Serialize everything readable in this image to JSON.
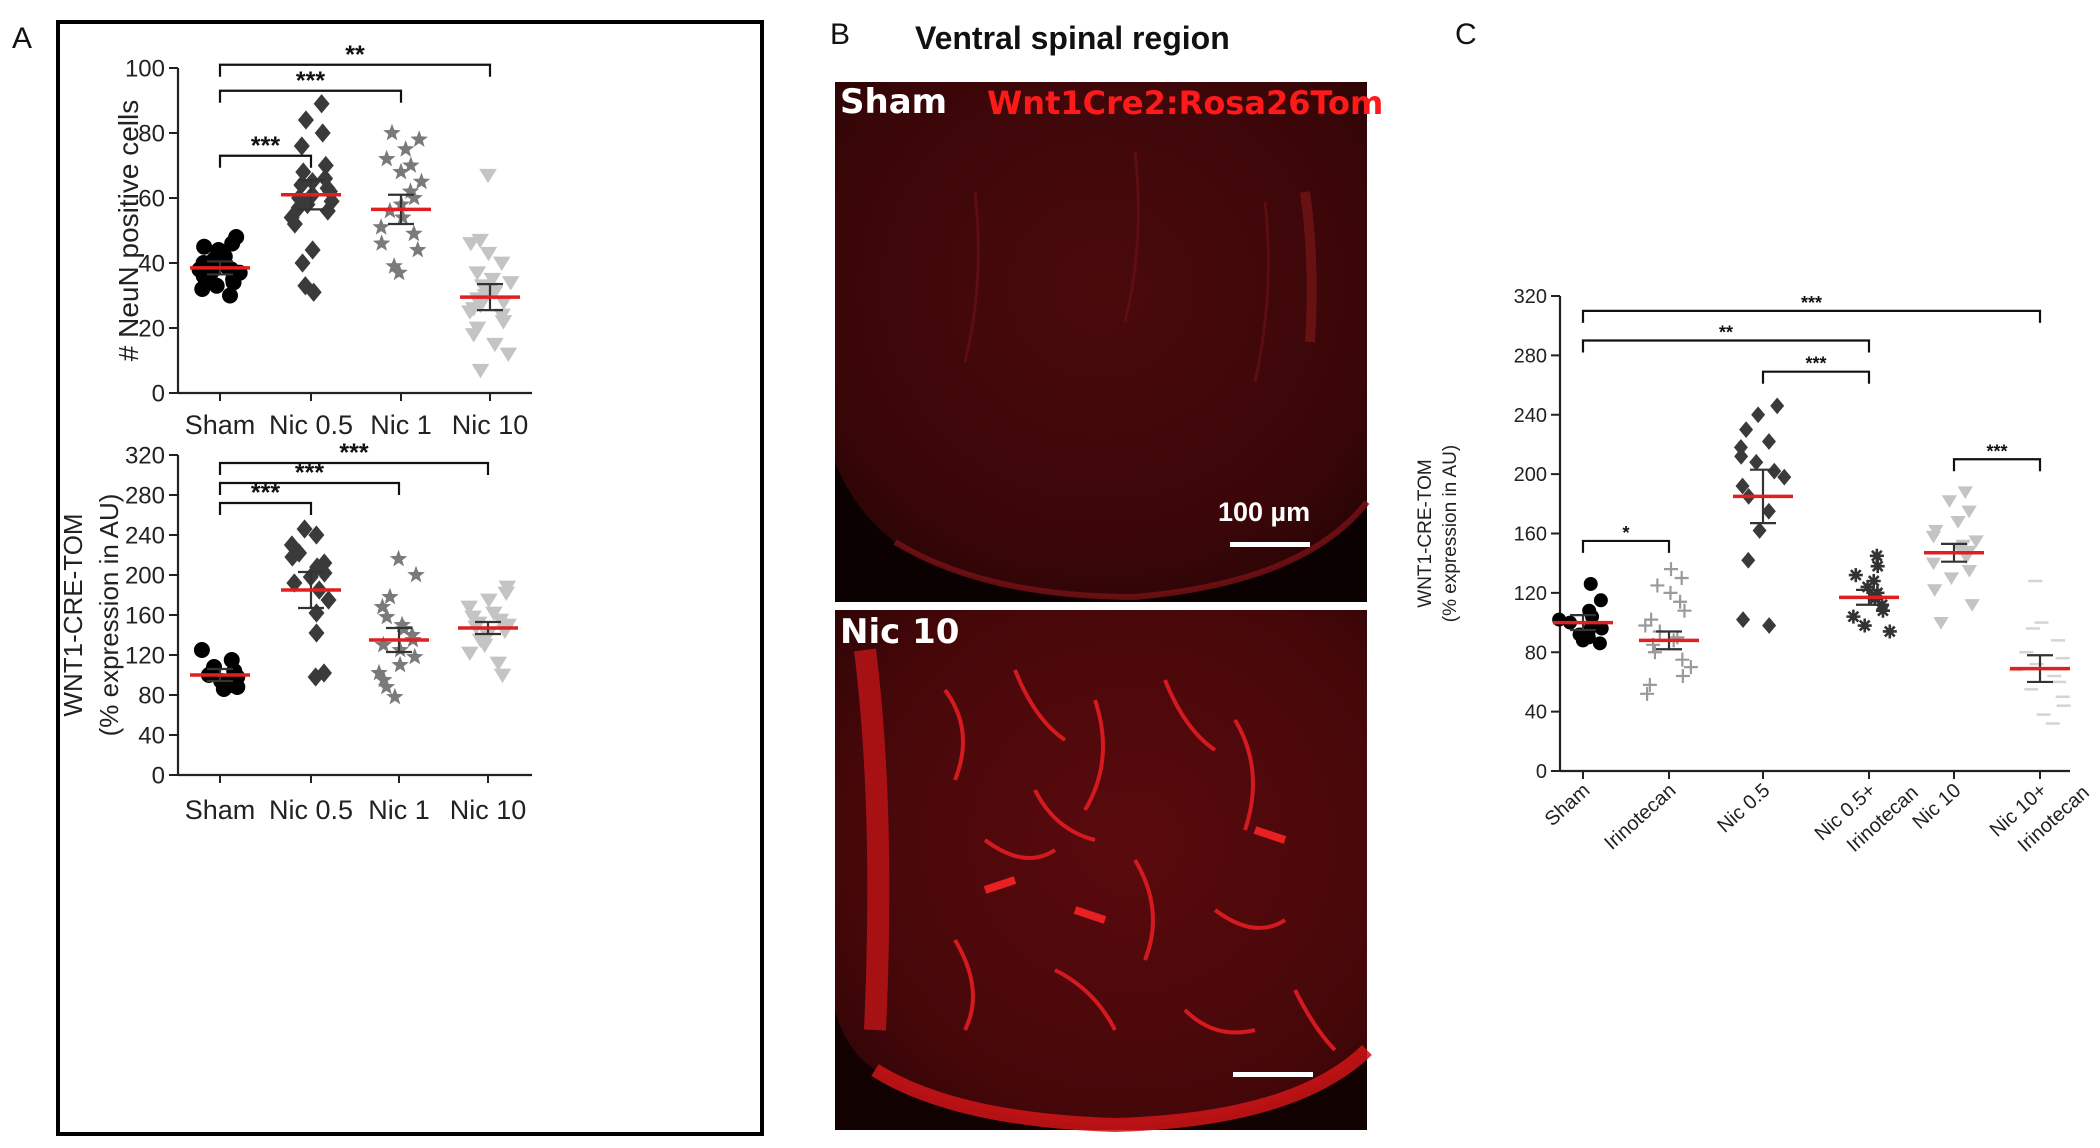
{
  "panels": {
    "a": {
      "letter": "A"
    },
    "b": {
      "letter": "B",
      "title": "Ventral spinal region",
      "top_label": "Sham",
      "bottom_label": "Nic 10",
      "genotype_label": "Wnt1Cre2:Rosa26Tom",
      "scale_text": "100 µm"
    },
    "c": {
      "letter": "C"
    }
  },
  "colors": {
    "mean_line": "#e02020",
    "sham": "#000000",
    "nic05": "#3a3a3a",
    "nic1": "#7a7a7a",
    "nic10": "#c4c4c4",
    "irinotecan": "#9a9a9a",
    "tissue": "#d01515"
  },
  "chart_data": [
    {
      "id": "A-top",
      "type": "scatter",
      "ylabel": "# NeuN positive cells",
      "xlabel": "",
      "ylim": [
        0,
        100
      ],
      "yticks": [
        0,
        20,
        40,
        60,
        80,
        100
      ],
      "categories": [
        "Sham",
        "Nic 0.5",
        "Nic 1",
        "Nic 10"
      ],
      "series": [
        {
          "name": "Sham",
          "marker": "circle",
          "color": "#000000",
          "mean": 38.5,
          "sem": 2,
          "values": [
            30,
            32,
            33,
            34,
            35,
            35,
            36,
            37,
            37,
            38,
            38,
            39,
            39,
            40,
            40,
            41,
            42,
            43,
            44,
            45,
            46,
            48
          ]
        },
        {
          "name": "Nic 0.5",
          "marker": "diamond",
          "color": "#3a3a3a",
          "mean": 61,
          "sem": 4.5,
          "values": [
            31,
            33,
            40,
            44,
            52,
            54,
            56,
            57,
            58,
            59,
            60,
            61,
            62,
            63,
            64,
            65,
            66,
            68,
            70,
            76,
            80,
            84,
            89
          ]
        },
        {
          "name": "Nic 1",
          "marker": "star",
          "color": "#7a7a7a",
          "mean": 56.5,
          "sem": 4.5,
          "values": [
            37,
            39,
            44,
            46,
            49,
            51,
            54,
            56,
            58,
            60,
            62,
            65,
            68,
            70,
            72,
            75,
            78,
            80
          ]
        },
        {
          "name": "Nic 10",
          "marker": "triangle-down",
          "color": "#c4c4c4",
          "mean": 29.5,
          "sem": 4,
          "values": [
            7,
            12,
            15,
            18,
            20,
            22,
            24,
            25,
            26,
            27,
            28,
            29,
            30,
            31,
            32,
            33,
            34,
            35,
            37,
            40,
            43,
            46,
            47,
            67
          ]
        }
      ],
      "significance": [
        {
          "from": "Sham",
          "to": "Nic 0.5",
          "label": "***",
          "y": 73
        },
        {
          "from": "Sham",
          "to": "Nic 1",
          "label": "***",
          "y": 93
        },
        {
          "from": "Sham",
          "to": "Nic 10",
          "label": "**",
          "y": 101
        }
      ]
    },
    {
      "id": "A-bottom",
      "type": "scatter",
      "ylabel": "WNT1-CRE-TOM",
      "ylabel2": "(% expression in AU)",
      "xlabel": "",
      "ylim": [
        0,
        320
      ],
      "yticks": [
        0,
        40,
        80,
        120,
        160,
        200,
        240,
        280,
        320
      ],
      "categories": [
        "Sham",
        "Nic 0.5",
        "Nic 1",
        "Nic 10"
      ],
      "series": [
        {
          "name": "Sham",
          "marker": "circle",
          "color": "#000000",
          "mean": 100,
          "sem": 6,
          "values": [
            86,
            88,
            90,
            92,
            94,
            96,
            98,
            100,
            102,
            104,
            108,
            115,
            125
          ]
        },
        {
          "name": "Nic 0.5",
          "marker": "diamond",
          "color": "#3a3a3a",
          "mean": 185,
          "sem": 18,
          "values": [
            98,
            102,
            142,
            162,
            175,
            185,
            192,
            198,
            202,
            208,
            212,
            218,
            222,
            230,
            240,
            246
          ]
        },
        {
          "name": "Nic 1",
          "marker": "star",
          "color": "#7a7a7a",
          "mean": 135,
          "sem": 12,
          "values": [
            78,
            88,
            95,
            102,
            110,
            118,
            125,
            130,
            135,
            140,
            146,
            150,
            158,
            168,
            178,
            200,
            216
          ]
        },
        {
          "name": "Nic 10",
          "marker": "triangle-down",
          "color": "#c4c4c4",
          "mean": 147,
          "sem": 6,
          "values": [
            100,
            112,
            122,
            130,
            135,
            140,
            144,
            148,
            150,
            152,
            155,
            158,
            162,
            168,
            175,
            182,
            188
          ]
        }
      ],
      "significance": [
        {
          "from": "Sham",
          "to": "Nic 0.5",
          "label": "***",
          "y": 272
        },
        {
          "from": "Sham",
          "to": "Nic 1",
          "label": "***",
          "y": 292
        },
        {
          "from": "Sham",
          "to": "Nic 10",
          "label": "***",
          "y": 312
        }
      ]
    },
    {
      "id": "C",
      "type": "scatter",
      "ylabel": "WNT1-CRE-TOM",
      "ylabel2": "(% expression in AU)",
      "xlabel": "",
      "ylim": [
        0,
        320
      ],
      "yticks": [
        0,
        40,
        80,
        120,
        160,
        200,
        240,
        280,
        320
      ],
      "categories": [
        "Sham",
        "Irinotecan",
        "Nic 0.5",
        "Nic 0.5+ Irinotecan",
        "Nic 10",
        "Nic 10+ Irinotecan"
      ],
      "series": [
        {
          "name": "Sham",
          "marker": "circle",
          "color": "#000000",
          "mean": 100,
          "sem": 5,
          "values": [
            86,
            88,
            90,
            92,
            94,
            96,
            98,
            100,
            102,
            104,
            108,
            115,
            126
          ]
        },
        {
          "name": "Irinotecan",
          "marker": "plus",
          "color": "#9a9a9a",
          "mean": 88,
          "sem": 6,
          "values": [
            52,
            58,
            64,
            70,
            75,
            80,
            85,
            88,
            90,
            94,
            98,
            102,
            108,
            114,
            120,
            125,
            130,
            136
          ]
        },
        {
          "name": "Nic 0.5",
          "marker": "diamond",
          "color": "#3a3a3a",
          "mean": 185,
          "sem": 18,
          "values": [
            98,
            102,
            142,
            162,
            175,
            185,
            192,
            198,
            202,
            208,
            212,
            218,
            222,
            230,
            240,
            246
          ]
        },
        {
          "name": "Nic 0.5+ Irinotecan",
          "marker": "asterisk",
          "color": "#333333",
          "mean": 117,
          "sem": 5,
          "values": [
            94,
            98,
            104,
            108,
            112,
            116,
            118,
            120,
            124,
            128,
            132,
            138,
            145
          ]
        },
        {
          "name": "Nic 10",
          "marker": "triangle-down",
          "color": "#c4c4c4",
          "mean": 147,
          "sem": 6,
          "values": [
            100,
            112,
            122,
            130,
            135,
            140,
            144,
            148,
            150,
            152,
            155,
            158,
            162,
            168,
            175,
            182,
            188
          ]
        },
        {
          "name": "Nic 10+ Irinotecan",
          "marker": "dash",
          "color": "#d4d4d4",
          "mean": 69,
          "sem": 9,
          "values": [
            32,
            38,
            44,
            50,
            55,
            60,
            64,
            68,
            72,
            76,
            80,
            88,
            96,
            100,
            128
          ]
        }
      ],
      "significance": [
        {
          "from": "Sham",
          "to": "Irinotecan",
          "label": "*",
          "y": 155
        },
        {
          "from": "Sham",
          "to": "Nic 10+ Irinotecan",
          "label": "***",
          "y": 310
        },
        {
          "from": "Sham",
          "to": "Nic 0.5+ Irinotecan",
          "label": "**",
          "y": 290
        },
        {
          "from": "Nic 0.5",
          "to": "Nic 0.5+ Irinotecan",
          "label": "***",
          "y": 269
        },
        {
          "from": "Nic 10",
          "to": "Nic 10+ Irinotecan",
          "label": "***",
          "y": 210
        }
      ]
    }
  ]
}
